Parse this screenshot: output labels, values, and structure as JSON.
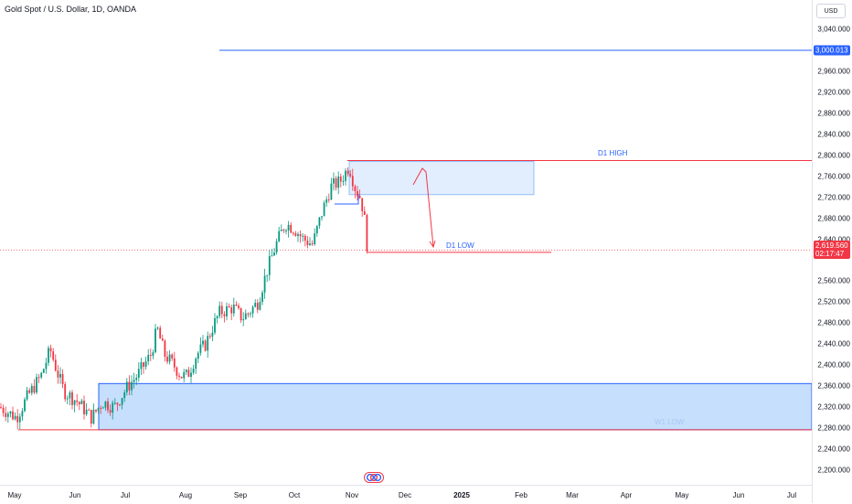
{
  "header": {
    "title": "Gold Spot / U.S. Dollar, 1D, OANDA"
  },
  "price_axis": {
    "currency_label": "USD",
    "ticks": [
      "3,040.000",
      "2,960.000",
      "2,920.000",
      "2,880.000",
      "2,840.000",
      "2,800.000",
      "2,760.000",
      "2,720.000",
      "2,680.000",
      "2,640.000",
      "2,560.000",
      "2,520.000",
      "2,480.000",
      "2,440.000",
      "2,400.000",
      "2,360.000",
      "2,320.000",
      "2,280.000",
      "2,240.000",
      "2,200.000"
    ],
    "tick_values": [
      3040,
      2960,
      2920,
      2880,
      2840,
      2800,
      2760,
      2720,
      2680,
      2640,
      2560,
      2520,
      2480,
      2440,
      2400,
      2360,
      2320,
      2280,
      2240,
      2200
    ],
    "level_badge": {
      "text": "3,000.013",
      "value": 3000.013,
      "color": "#2962ff"
    },
    "current_price": {
      "text": "2,619.560",
      "countdown": "02:17:47",
      "value": 2619.56,
      "color": "#f23645"
    }
  },
  "time_axis": {
    "labels": [
      "May",
      "Jun",
      "Jul",
      "Aug",
      "Sep",
      "Oct",
      "Nov",
      "Dec",
      "2025",
      "Feb",
      "Mar",
      "Apr",
      "May",
      "Jun",
      "Jul"
    ]
  },
  "annotations": {
    "d1_high": {
      "text": "D1 HIGH",
      "value": 2790,
      "color": "#f23645",
      "text_color": "#2962ff"
    },
    "d1_low": {
      "text": "D1 LOW",
      "value": 2615,
      "color": "#f23645",
      "text_color": "#2962ff"
    },
    "w1_low": {
      "text": "W1 LOW",
      "value": 2277,
      "color": "#f23645"
    },
    "supply_zone": {
      "top": 2788,
      "bottom": 2725
    },
    "demand_zone": {
      "top": 2365,
      "bottom": 2277
    },
    "level_line": {
      "value": 3000.013,
      "color": "#2962ff"
    }
  },
  "colors": {
    "up": "#089981",
    "down": "#f23645",
    "zone_fill": "#bbd9fb",
    "zone_border": "#2962ff"
  },
  "chart_data": {
    "type": "candlestick",
    "symbol": "Gold Spot / U.S. Dollar",
    "timeframe": "1D",
    "approx_close_path": [
      [
        "May",
        2300
      ],
      [
        "May",
        2330
      ],
      [
        "May",
        2350
      ],
      [
        "May",
        2420
      ],
      [
        "May",
        2420
      ],
      [
        "Jun",
        2330
      ],
      [
        "Jun",
        2310
      ],
      [
        "Jun",
        2320
      ],
      [
        "Jun",
        2330
      ],
      [
        "Jun",
        2360
      ],
      [
        "Jul",
        2390
      ],
      [
        "Jul",
        2470
      ],
      [
        "Jul",
        2400
      ],
      [
        "Jul",
        2380
      ],
      [
        "Aug",
        2410
      ],
      [
        "Aug",
        2450
      ],
      [
        "Aug",
        2500
      ],
      [
        "Aug",
        2510
      ],
      [
        "Sep",
        2500
      ],
      [
        "Sep",
        2590
      ],
      [
        "Sep",
        2660
      ],
      [
        "Oct",
        2660
      ],
      [
        "Oct",
        2650
      ],
      [
        "Oct",
        2700
      ],
      [
        "Oct",
        2760
      ],
      [
        "Oct",
        2780
      ],
      [
        "Nov",
        2740
      ],
      [
        "Nov",
        2660
      ],
      [
        "Nov",
        2619.56
      ]
    ]
  }
}
